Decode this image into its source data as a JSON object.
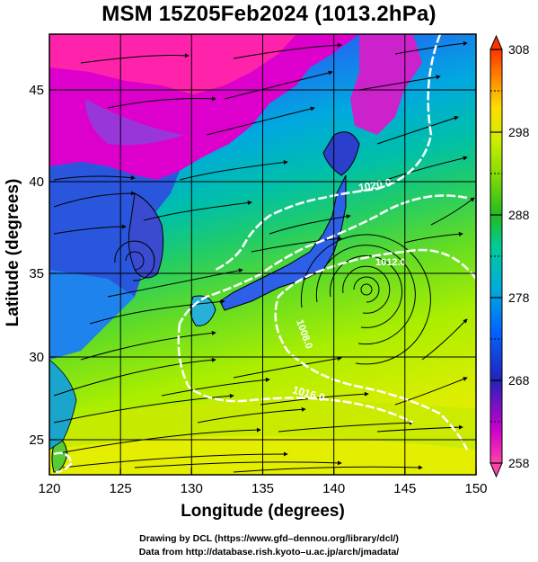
{
  "title": "MSM 15Z05Feb2024 (1013.2hPa)",
  "axes": {
    "xlabel": "Longitude (degrees)",
    "ylabel": "Latitude  (degrees)",
    "x_ticks": [
      "120",
      "125",
      "130",
      "135",
      "140",
      "145",
      "150"
    ],
    "y_ticks": [
      "25",
      "30",
      "35",
      "40",
      "45"
    ],
    "x_range": [
      120,
      150
    ],
    "y_range": [
      22.4,
      47.6
    ]
  },
  "colorbar": {
    "tick_labels": [
      "258",
      "268",
      "278",
      "288",
      "298",
      "308"
    ],
    "range": [
      258,
      308
    ],
    "colors": [
      "#ff44aa",
      "#cc00cc",
      "#3333cc",
      "#0044ff",
      "#00bbdd",
      "#00cc77",
      "#22bb22",
      "#88dd00",
      "#ccee00",
      "#ffee00",
      "#ffaa00",
      "#ff4400"
    ]
  },
  "contours": {
    "labels": [
      "1020.0",
      "1016.0",
      "1012.0",
      "1008.0"
    ],
    "color": "#ffffff"
  },
  "credits": {
    "line1": "Drawing by DCL (https://www.gfd–dennou.org/library/dcl/)",
    "line2": "Data from http://database.rish.kyoto–u.ac.jp/arch/jmadata/"
  }
}
